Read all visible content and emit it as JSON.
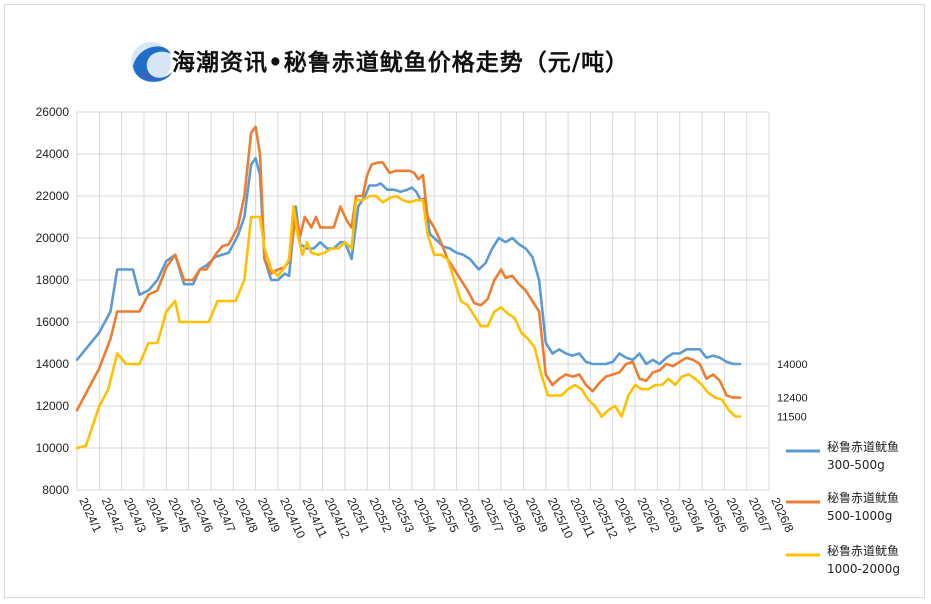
{
  "chart_data": {
    "type": "line",
    "title": "海潮资讯•秘鲁赤道鱿鱼价格走势（元/吨）",
    "xlabel": "",
    "ylabel": "",
    "ylim": [
      8000,
      26000
    ],
    "y_ticks": [
      "8000",
      "10000",
      "12000",
      "14000",
      "16000",
      "18000",
      "20000",
      "22000",
      "24000",
      "26000"
    ],
    "x_ticks": [
      "2024/1",
      "2024/2",
      "2024/3",
      "2024/4",
      "2024/5",
      "2024/6",
      "2024/7",
      "2024/8",
      "2024/9",
      "2024/10",
      "2024/11",
      "2024/12",
      "2025/1",
      "2025/2",
      "2025/3",
      "2025/4",
      "2025/5",
      "2025/6",
      "2025/7",
      "2025/8",
      "2025/9",
      "2025/10",
      "2025/11",
      "2025/12",
      "2026/1",
      "2026/2",
      "2026/3",
      "2026/4",
      "2026/5",
      "2026/6",
      "2026/7",
      "2026/8"
    ],
    "grid": true,
    "legend_position": "right",
    "series": [
      {
        "name": "秘鲁赤道鱿鱼 300-500g",
        "color": "#5b9bd5",
        "end_label": "14000",
        "points": [
          [
            0,
            14200
          ],
          [
            1.0,
            15500
          ],
          [
            1.5,
            16500
          ],
          [
            1.8,
            18500
          ],
          [
            2.5,
            18500
          ],
          [
            2.8,
            17300
          ],
          [
            3.2,
            17500
          ],
          [
            3.6,
            18000
          ],
          [
            4.0,
            18900
          ],
          [
            4.4,
            19200
          ],
          [
            4.8,
            17800
          ],
          [
            5.2,
            17800
          ],
          [
            5.5,
            18500
          ],
          [
            5.8,
            18700
          ],
          [
            6.2,
            19100
          ],
          [
            6.5,
            19200
          ],
          [
            6.8,
            19300
          ],
          [
            7.2,
            20100
          ],
          [
            7.5,
            21000
          ],
          [
            7.8,
            23500
          ],
          [
            8.0,
            23800
          ],
          [
            8.2,
            23000
          ],
          [
            8.4,
            19000
          ],
          [
            8.7,
            18000
          ],
          [
            9.0,
            18000
          ],
          [
            9.3,
            18300
          ],
          [
            9.5,
            18200
          ],
          [
            9.8,
            21500
          ],
          [
            10.0,
            19700
          ],
          [
            10.3,
            19500
          ],
          [
            10.6,
            19500
          ],
          [
            10.9,
            19800
          ],
          [
            11.2,
            19500
          ],
          [
            11.5,
            19500
          ],
          [
            11.8,
            19800
          ],
          [
            12.0,
            19800
          ],
          [
            12.3,
            19000
          ],
          [
            12.6,
            21500
          ],
          [
            12.9,
            22000
          ],
          [
            13.1,
            22500
          ],
          [
            13.4,
            22500
          ],
          [
            13.6,
            22600
          ],
          [
            13.9,
            22300
          ],
          [
            14.2,
            22300
          ],
          [
            14.5,
            22200
          ],
          [
            14.8,
            22300
          ],
          [
            15.0,
            22400
          ],
          [
            15.2,
            22200
          ],
          [
            15.4,
            21800
          ],
          [
            15.6,
            21900
          ],
          [
            15.8,
            20200
          ],
          [
            16.1,
            19900
          ],
          [
            16.4,
            19600
          ],
          [
            16.7,
            19500
          ],
          [
            17.0,
            19300
          ],
          [
            17.3,
            19200
          ],
          [
            17.6,
            19000
          ],
          [
            18.0,
            18500
          ],
          [
            18.3,
            18800
          ],
          [
            18.6,
            19500
          ],
          [
            18.9,
            20000
          ],
          [
            19.2,
            19800
          ],
          [
            19.5,
            20000
          ],
          [
            19.8,
            19700
          ],
          [
            20.1,
            19500
          ],
          [
            20.4,
            19100
          ],
          [
            20.7,
            18000
          ],
          [
            21.0,
            15000
          ],
          [
            21.3,
            14500
          ],
          [
            21.6,
            14700
          ],
          [
            21.9,
            14500
          ],
          [
            22.2,
            14400
          ],
          [
            22.5,
            14500
          ],
          [
            22.8,
            14100
          ],
          [
            23.1,
            14000
          ],
          [
            23.4,
            14000
          ],
          [
            23.7,
            14000
          ],
          [
            24.0,
            14100
          ],
          [
            24.3,
            14500
          ],
          [
            24.6,
            14300
          ],
          [
            24.9,
            14200
          ],
          [
            25.2,
            14500
          ],
          [
            25.5,
            14000
          ],
          [
            25.8,
            14200
          ],
          [
            26.1,
            14000
          ],
          [
            26.4,
            14300
          ],
          [
            26.7,
            14500
          ],
          [
            27.0,
            14500
          ],
          [
            27.3,
            14700
          ],
          [
            27.6,
            14700
          ],
          [
            27.9,
            14700
          ],
          [
            28.2,
            14300
          ],
          [
            28.5,
            14400
          ],
          [
            28.8,
            14300
          ],
          [
            29.1,
            14100
          ],
          [
            29.4,
            14000
          ],
          [
            29.7,
            14000
          ]
        ]
      },
      {
        "name": "秘鲁赤道鱿鱼 500-1000g",
        "color": "#ed7d31",
        "end_label": "12400",
        "points": [
          [
            0,
            11800
          ],
          [
            0.6,
            13000
          ],
          [
            1.0,
            13800
          ],
          [
            1.5,
            15200
          ],
          [
            1.8,
            16500
          ],
          [
            2.2,
            16500
          ],
          [
            2.8,
            16500
          ],
          [
            3.2,
            17300
          ],
          [
            3.6,
            17500
          ],
          [
            4.0,
            18600
          ],
          [
            4.4,
            19200
          ],
          [
            4.8,
            18000
          ],
          [
            5.2,
            18000
          ],
          [
            5.5,
            18500
          ],
          [
            5.8,
            18500
          ],
          [
            6.2,
            19200
          ],
          [
            6.5,
            19600
          ],
          [
            6.8,
            19700
          ],
          [
            7.2,
            20500
          ],
          [
            7.5,
            22000
          ],
          [
            7.8,
            25000
          ],
          [
            8.0,
            25300
          ],
          [
            8.2,
            24000
          ],
          [
            8.4,
            19000
          ],
          [
            8.7,
            18300
          ],
          [
            9.0,
            18500
          ],
          [
            9.3,
            18600
          ],
          [
            9.5,
            18900
          ],
          [
            9.8,
            21000
          ],
          [
            10.0,
            20100
          ],
          [
            10.2,
            21000
          ],
          [
            10.5,
            20500
          ],
          [
            10.7,
            21000
          ],
          [
            10.9,
            20500
          ],
          [
            11.2,
            20500
          ],
          [
            11.5,
            20500
          ],
          [
            11.8,
            21500
          ],
          [
            12.1,
            20800
          ],
          [
            12.3,
            20500
          ],
          [
            12.5,
            22000
          ],
          [
            12.8,
            22000
          ],
          [
            13.0,
            23000
          ],
          [
            13.2,
            23500
          ],
          [
            13.5,
            23600
          ],
          [
            13.7,
            23600
          ],
          [
            14.0,
            23100
          ],
          [
            14.3,
            23200
          ],
          [
            14.6,
            23200
          ],
          [
            14.9,
            23200
          ],
          [
            15.1,
            23100
          ],
          [
            15.3,
            22800
          ],
          [
            15.5,
            23000
          ],
          [
            15.7,
            21000
          ],
          [
            16.0,
            20500
          ],
          [
            16.3,
            19800
          ],
          [
            16.6,
            19000
          ],
          [
            16.9,
            18500
          ],
          [
            17.2,
            18000
          ],
          [
            17.5,
            17500
          ],
          [
            17.8,
            16900
          ],
          [
            18.1,
            16800
          ],
          [
            18.4,
            17100
          ],
          [
            18.7,
            18000
          ],
          [
            19.0,
            18500
          ],
          [
            19.2,
            18100
          ],
          [
            19.5,
            18200
          ],
          [
            19.8,
            17800
          ],
          [
            20.1,
            17500
          ],
          [
            20.4,
            17000
          ],
          [
            20.7,
            16500
          ],
          [
            21.0,
            13500
          ],
          [
            21.3,
            13000
          ],
          [
            21.6,
            13300
          ],
          [
            21.9,
            13500
          ],
          [
            22.2,
            13400
          ],
          [
            22.5,
            13500
          ],
          [
            22.8,
            13000
          ],
          [
            23.1,
            12700
          ],
          [
            23.4,
            13100
          ],
          [
            23.7,
            13400
          ],
          [
            24.0,
            13500
          ],
          [
            24.3,
            13600
          ],
          [
            24.6,
            14000
          ],
          [
            24.9,
            14100
          ],
          [
            25.2,
            13300
          ],
          [
            25.5,
            13200
          ],
          [
            25.8,
            13600
          ],
          [
            26.1,
            13700
          ],
          [
            26.4,
            14000
          ],
          [
            26.7,
            13900
          ],
          [
            27.0,
            14100
          ],
          [
            27.3,
            14300
          ],
          [
            27.6,
            14200
          ],
          [
            27.9,
            14000
          ],
          [
            28.2,
            13300
          ],
          [
            28.5,
            13500
          ],
          [
            28.8,
            13200
          ],
          [
            29.1,
            12500
          ],
          [
            29.4,
            12400
          ],
          [
            29.7,
            12400
          ]
        ]
      },
      {
        "name": "秘鲁赤道鱿鱼 1000-2000g",
        "color": "#ffc000",
        "end_label": "11500",
        "points": [
          [
            0,
            10000
          ],
          [
            0.4,
            10100
          ],
          [
            1.0,
            12000
          ],
          [
            1.4,
            12800
          ],
          [
            1.8,
            14500
          ],
          [
            2.2,
            14000
          ],
          [
            2.8,
            14000
          ],
          [
            3.2,
            15000
          ],
          [
            3.6,
            15000
          ],
          [
            4.0,
            16500
          ],
          [
            4.4,
            17000
          ],
          [
            4.6,
            16000
          ],
          [
            5.0,
            16000
          ],
          [
            5.5,
            16000
          ],
          [
            5.9,
            16000
          ],
          [
            6.3,
            17000
          ],
          [
            6.8,
            17000
          ],
          [
            7.1,
            17000
          ],
          [
            7.5,
            18000
          ],
          [
            7.8,
            21000
          ],
          [
            8.2,
            21000
          ],
          [
            8.4,
            19500
          ],
          [
            8.7,
            18500
          ],
          [
            9.0,
            18200
          ],
          [
            9.3,
            18600
          ],
          [
            9.5,
            19000
          ],
          [
            9.7,
            21500
          ],
          [
            9.9,
            20100
          ],
          [
            10.1,
            19200
          ],
          [
            10.3,
            19800
          ],
          [
            10.5,
            19300
          ],
          [
            10.8,
            19200
          ],
          [
            11.1,
            19300
          ],
          [
            11.4,
            19500
          ],
          [
            11.7,
            19500
          ],
          [
            12.0,
            19800
          ],
          [
            12.3,
            19500
          ],
          [
            12.5,
            21800
          ],
          [
            12.8,
            21800
          ],
          [
            13.1,
            22000
          ],
          [
            13.4,
            22000
          ],
          [
            13.7,
            21700
          ],
          [
            14.0,
            21900
          ],
          [
            14.3,
            22000
          ],
          [
            14.6,
            21800
          ],
          [
            14.9,
            21700
          ],
          [
            15.2,
            21800
          ],
          [
            15.5,
            21800
          ],
          [
            15.7,
            20200
          ],
          [
            16.0,
            19200
          ],
          [
            16.3,
            19200
          ],
          [
            16.6,
            19000
          ],
          [
            16.9,
            18000
          ],
          [
            17.2,
            17000
          ],
          [
            17.5,
            16800
          ],
          [
            17.8,
            16300
          ],
          [
            18.1,
            15800
          ],
          [
            18.4,
            15800
          ],
          [
            18.7,
            16500
          ],
          [
            19.0,
            16700
          ],
          [
            19.3,
            16400
          ],
          [
            19.6,
            16200
          ],
          [
            19.9,
            15500
          ],
          [
            20.2,
            15200
          ],
          [
            20.5,
            14800
          ],
          [
            20.8,
            13500
          ],
          [
            21.1,
            12500
          ],
          [
            21.4,
            12500
          ],
          [
            21.7,
            12500
          ],
          [
            22.0,
            12800
          ],
          [
            22.3,
            13000
          ],
          [
            22.6,
            12800
          ],
          [
            22.9,
            12300
          ],
          [
            23.2,
            12000
          ],
          [
            23.5,
            11500
          ],
          [
            23.8,
            11800
          ],
          [
            24.1,
            12000
          ],
          [
            24.4,
            11500
          ],
          [
            24.7,
            12500
          ],
          [
            25.0,
            13000
          ],
          [
            25.3,
            12800
          ],
          [
            25.6,
            12800
          ],
          [
            25.9,
            13000
          ],
          [
            26.2,
            13000
          ],
          [
            26.5,
            13300
          ],
          [
            26.8,
            13000
          ],
          [
            27.1,
            13400
          ],
          [
            27.4,
            13500
          ],
          [
            27.7,
            13300
          ],
          [
            28.0,
            13000
          ],
          [
            28.3,
            12600
          ],
          [
            28.6,
            12400
          ],
          [
            28.9,
            12300
          ],
          [
            29.2,
            11800
          ],
          [
            29.5,
            11500
          ],
          [
            29.7,
            11500
          ]
        ]
      }
    ]
  },
  "logo": {
    "icon": "wave-globe-logo"
  }
}
